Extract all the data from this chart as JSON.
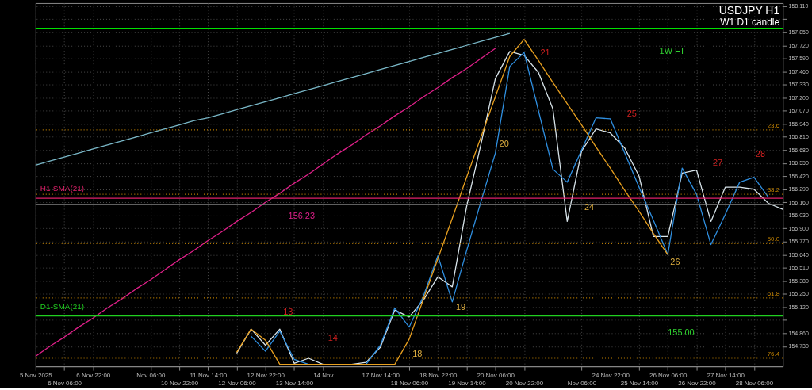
{
  "chart_data": {
    "type": "line",
    "title": "USDJPY H1",
    "subtitle": "W1 D1 candle",
    "categories": [
      "5 Nov 2025",
      null,
      "6 Nov 06:00",
      null,
      "6 Nov 22:00",
      null,
      null,
      null,
      "Nov 06:00",
      null,
      "10 Nov 22:00",
      null,
      "11 Nov 14:00",
      null,
      "12 Nov 06:00",
      null,
      "12 Nov 22:00",
      null,
      "13 Nov 14:00",
      null,
      "14 Nov",
      null,
      null,
      null,
      "17 Nov 14:00",
      null,
      "18 Nov 06:00",
      null,
      "18 Nov 22:00",
      null,
      "19 Nov 14:00",
      null,
      "20 Nov 06:00",
      null,
      "20 Nov 22:00",
      null,
      null,
      null,
      "Nov 06:00",
      null,
      "24 Nov 22:00",
      null,
      "25 Nov 14:00",
      null,
      "26 Nov 06:00",
      null,
      "26 Nov 22:00",
      null,
      "27 Nov 14:00",
      null,
      "28 Nov 06:00",
      null,
      null
    ],
    "ylim": [
      154.53,
      158.14
    ],
    "yticks": [
      {
        "value": 154.73,
        "label": "154.730"
      },
      {
        "value": 154.86,
        "label": "154.860"
      },
      {
        "value": 154.99,
        "label": null
      },
      {
        "value": 155.12,
        "label": "155.120"
      },
      {
        "value": 155.25,
        "label": "155.250"
      },
      {
        "value": 155.38,
        "label": "155.380"
      },
      {
        "value": 155.51,
        "label": "155.510"
      },
      {
        "value": 155.64,
        "label": "155.640"
      },
      {
        "value": 155.77,
        "label": "155.770"
      },
      {
        "value": 155.9,
        "label": "155.900"
      },
      {
        "value": 156.03,
        "label": "156.030"
      },
      {
        "value": 156.16,
        "label": "156.160"
      },
      {
        "value": 156.29,
        "label": "156.290"
      },
      {
        "value": 156.42,
        "label": "156.420"
      },
      {
        "value": 156.55,
        "label": "156.550"
      },
      {
        "value": 156.68,
        "label": "156.680"
      },
      {
        "value": 156.81,
        "label": "156.810"
      },
      {
        "value": 156.94,
        "label": "156.940"
      },
      {
        "value": 157.07,
        "label": "157.070"
      },
      {
        "value": 157.2,
        "label": "157.200"
      },
      {
        "value": 157.33,
        "label": "157.330"
      },
      {
        "value": 157.46,
        "label": "157.460"
      },
      {
        "value": 157.59,
        "label": "157.590"
      },
      {
        "value": 157.72,
        "label": "157.720"
      },
      {
        "value": 157.85,
        "label": "157.850"
      },
      {
        "value": 157.98,
        "label": null
      },
      {
        "value": 158.11,
        "label": "158.110"
      }
    ],
    "grid": true,
    "line_style": "solid",
    "marker": "none",
    "series": [
      {
        "color": "#d8e4ea",
        "values": [
          null,
          null,
          null,
          null,
          null,
          null,
          null,
          null,
          null,
          null,
          null,
          null,
          null,
          null,
          154.66,
          154.9,
          154.74,
          154.9,
          154.56,
          154.61,
          154.55,
          154.55,
          154.55,
          154.57,
          154.72,
          155.09,
          155.02,
          155.19,
          155.42,
          155.32,
          156.12,
          156.74,
          157.39,
          157.66,
          157.62,
          157.45,
          157.09,
          155.97,
          156.67,
          156.89,
          156.85,
          156.7,
          156.42,
          155.82,
          155.82,
          156.45,
          156.48,
          155.97,
          156.31,
          156.31,
          156.29,
          156.15,
          156.09
        ]
      },
      {
        "color": "#2f8fe0",
        "values": [
          null,
          null,
          null,
          null,
          null,
          null,
          null,
          null,
          null,
          null,
          null,
          null,
          null,
          null,
          null,
          154.83,
          154.68,
          154.88,
          154.6,
          154.55,
          154.55,
          154.55,
          154.55,
          154.55,
          154.74,
          155.11,
          154.92,
          155.23,
          155.63,
          155.17,
          155.68,
          156.17,
          156.65,
          157.51,
          157.65,
          157.07,
          156.49,
          156.36,
          156.68,
          157.0,
          156.99,
          156.65,
          156.31,
          155.98,
          155.64,
          156.5,
          156.24,
          155.74,
          156.04,
          156.36,
          156.41,
          156.21,
          null
        ]
      },
      {
        "color": "#e8a020",
        "values": [
          null,
          null,
          null,
          null,
          null,
          null,
          null,
          null,
          null,
          null,
          null,
          null,
          null,
          null,
          154.67,
          154.9,
          154.79,
          154.55,
          154.55,
          154.55,
          154.55,
          154.55,
          154.55,
          154.55,
          154.55,
          154.55,
          154.8,
          155.2,
          155.6,
          156.0,
          156.41,
          156.81,
          157.21,
          157.61,
          157.78,
          157.57,
          157.35,
          157.14,
          156.93,
          156.71,
          156.5,
          156.28,
          156.07,
          155.85,
          155.64,
          null,
          null,
          null,
          null,
          null,
          null,
          null,
          null
        ]
      },
      {
        "color": "#7ab8c8",
        "values": [
          156.53,
          156.57,
          156.61,
          156.65,
          156.69,
          156.73,
          156.77,
          156.81,
          156.85,
          156.89,
          156.93,
          156.97,
          157.0,
          157.04,
          157.08,
          157.12,
          157.16,
          157.2,
          157.24,
          157.28,
          157.32,
          157.36,
          157.4,
          157.44,
          157.48,
          157.52,
          157.56,
          157.6,
          157.64,
          157.68,
          157.72,
          157.76,
          157.8,
          157.84,
          null,
          null,
          null,
          null,
          null,
          null,
          null,
          null,
          null,
          null,
          null,
          null,
          null,
          null,
          null,
          null,
          null,
          null,
          null
        ]
      },
      {
        "color": "#e0208a",
        "values": [
          154.63,
          154.73,
          154.82,
          154.92,
          155.01,
          155.11,
          155.2,
          155.3,
          155.39,
          155.49,
          155.59,
          155.68,
          155.78,
          155.87,
          155.97,
          156.06,
          156.16,
          156.25,
          156.35,
          156.44,
          156.54,
          156.64,
          156.73,
          156.83,
          156.92,
          157.02,
          157.11,
          157.21,
          157.3,
          157.4,
          157.49,
          157.59,
          157.69,
          null,
          null,
          null,
          null,
          null,
          null,
          null,
          null,
          null,
          null,
          null,
          null,
          null,
          null,
          null,
          null,
          null,
          null,
          null,
          null
        ]
      }
    ],
    "ref_lines": [
      {
        "axis": "y",
        "value": 157.89,
        "color": "#00e000",
        "line_style": "solid"
      },
      {
        "axis": "y",
        "value": 156.2,
        "label": "H1-SMA(21)",
        "color": "#e0206a",
        "line_style": "solid"
      },
      {
        "axis": "y",
        "value": 156.14,
        "color": "#808080",
        "line_style": "solid"
      },
      {
        "axis": "y",
        "value": 155.03,
        "label": "D1-SMA(21)",
        "color": "#20d020",
        "line_style": "solid"
      },
      {
        "axis": "y",
        "value": 155.0,
        "color": "#c8c800",
        "line_style": "dotted"
      },
      {
        "axis": "y",
        "value": 156.88,
        "color": "#c08000",
        "line_style": "dotted"
      },
      {
        "axis": "y",
        "value": 156.24,
        "color": "#c08000",
        "line_style": "dotted"
      },
      {
        "axis": "y",
        "value": 155.75,
        "color": "#c08000",
        "line_style": "dotted"
      },
      {
        "axis": "y",
        "value": 155.21,
        "color": "#c08000",
        "line_style": "dotted"
      },
      {
        "axis": "y",
        "value": 154.61,
        "color": "#c08000",
        "line_style": "dotted"
      }
    ],
    "annotations": [
      "1W HI",
      "21",
      "20",
      "25",
      "27",
      "28",
      "24",
      "26",
      "156.23",
      "13",
      "14",
      "18",
      "19",
      "155.00",
      {
        "text": "23.6",
        "y": 156.88
      },
      {
        "text": "38.2",
        "y": 156.24
      },
      {
        "text": "50.0",
        "y": 155.75
      },
      {
        "text": "61.8",
        "y": 155.21
      },
      {
        "text": "76.4",
        "y": 154.61
      }
    ]
  }
}
